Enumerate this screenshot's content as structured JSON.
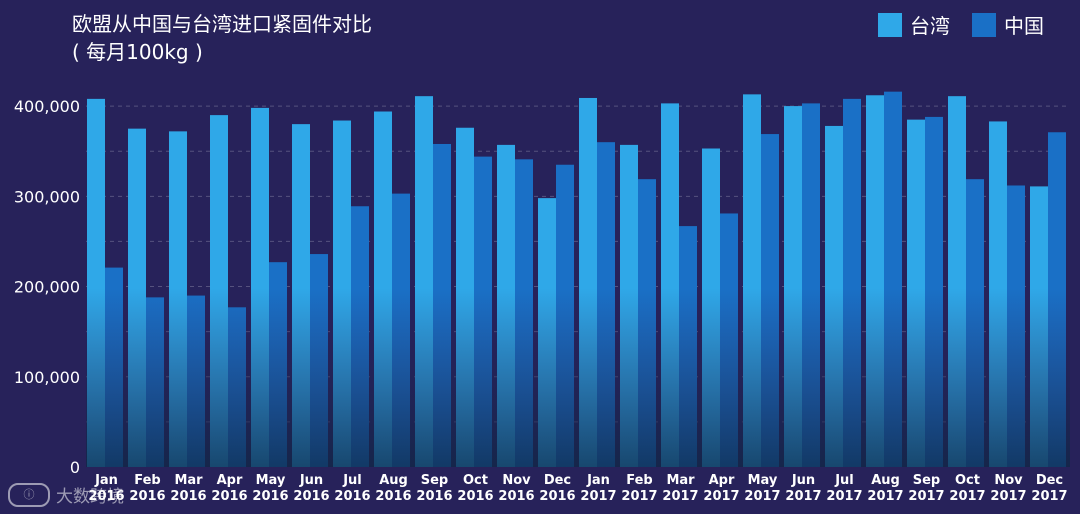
{
  "chart_data": {
    "type": "bar",
    "title": "欧盟从中国与台湾进口紧固件对比",
    "subtitle": "( 每月100kg )",
    "categories": [
      [
        "Jan",
        "2016"
      ],
      [
        "Feb",
        "2016"
      ],
      [
        "Mar",
        "2016"
      ],
      [
        "Apr",
        "2016"
      ],
      [
        "May",
        "2016"
      ],
      [
        "Jun",
        "2016"
      ],
      [
        "Jul",
        "2016"
      ],
      [
        "Aug",
        "2016"
      ],
      [
        "Sep",
        "2016"
      ],
      [
        "Oct",
        "2016"
      ],
      [
        "Nov",
        "2016"
      ],
      [
        "Dec",
        "2016"
      ],
      [
        "Jan",
        "2017"
      ],
      [
        "Feb",
        "2017"
      ],
      [
        "Mar",
        "2017"
      ],
      [
        "Apr",
        "2017"
      ],
      [
        "May",
        "2017"
      ],
      [
        "Jun",
        "2017"
      ],
      [
        "Jul",
        "2017"
      ],
      [
        "Aug",
        "2017"
      ],
      [
        "Sep",
        "2017"
      ],
      [
        "Oct",
        "2017"
      ],
      [
        "Nov",
        "2017"
      ],
      [
        "Dec",
        "2017"
      ]
    ],
    "series": [
      {
        "name": "台湾",
        "color": "#2fa8e8",
        "values": [
          408000,
          375000,
          372000,
          390000,
          398000,
          380000,
          384000,
          394000,
          411000,
          376000,
          357000,
          298000,
          409000,
          357000,
          403000,
          353000,
          413000,
          400000,
          378000,
          412000,
          385000,
          411000,
          383000,
          311000
        ]
      },
      {
        "name": "中国",
        "color": "#1a70c6",
        "values": [
          221000,
          188000,
          190000,
          177000,
          227000,
          236000,
          289000,
          303000,
          358000,
          344000,
          341000,
          335000,
          360000,
          319000,
          267000,
          281000,
          369000,
          403000,
          408000,
          416000,
          388000,
          319000,
          312000,
          371000
        ]
      }
    ],
    "yticks": [
      "0",
      "100,000",
      "200,000",
      "300,000",
      "400,000"
    ],
    "ylim": [
      0,
      440000
    ],
    "legend_position": "top-right",
    "grid": true
  },
  "watermark": {
    "icon_text": "ⓘ",
    "text": "大数跨境"
  }
}
